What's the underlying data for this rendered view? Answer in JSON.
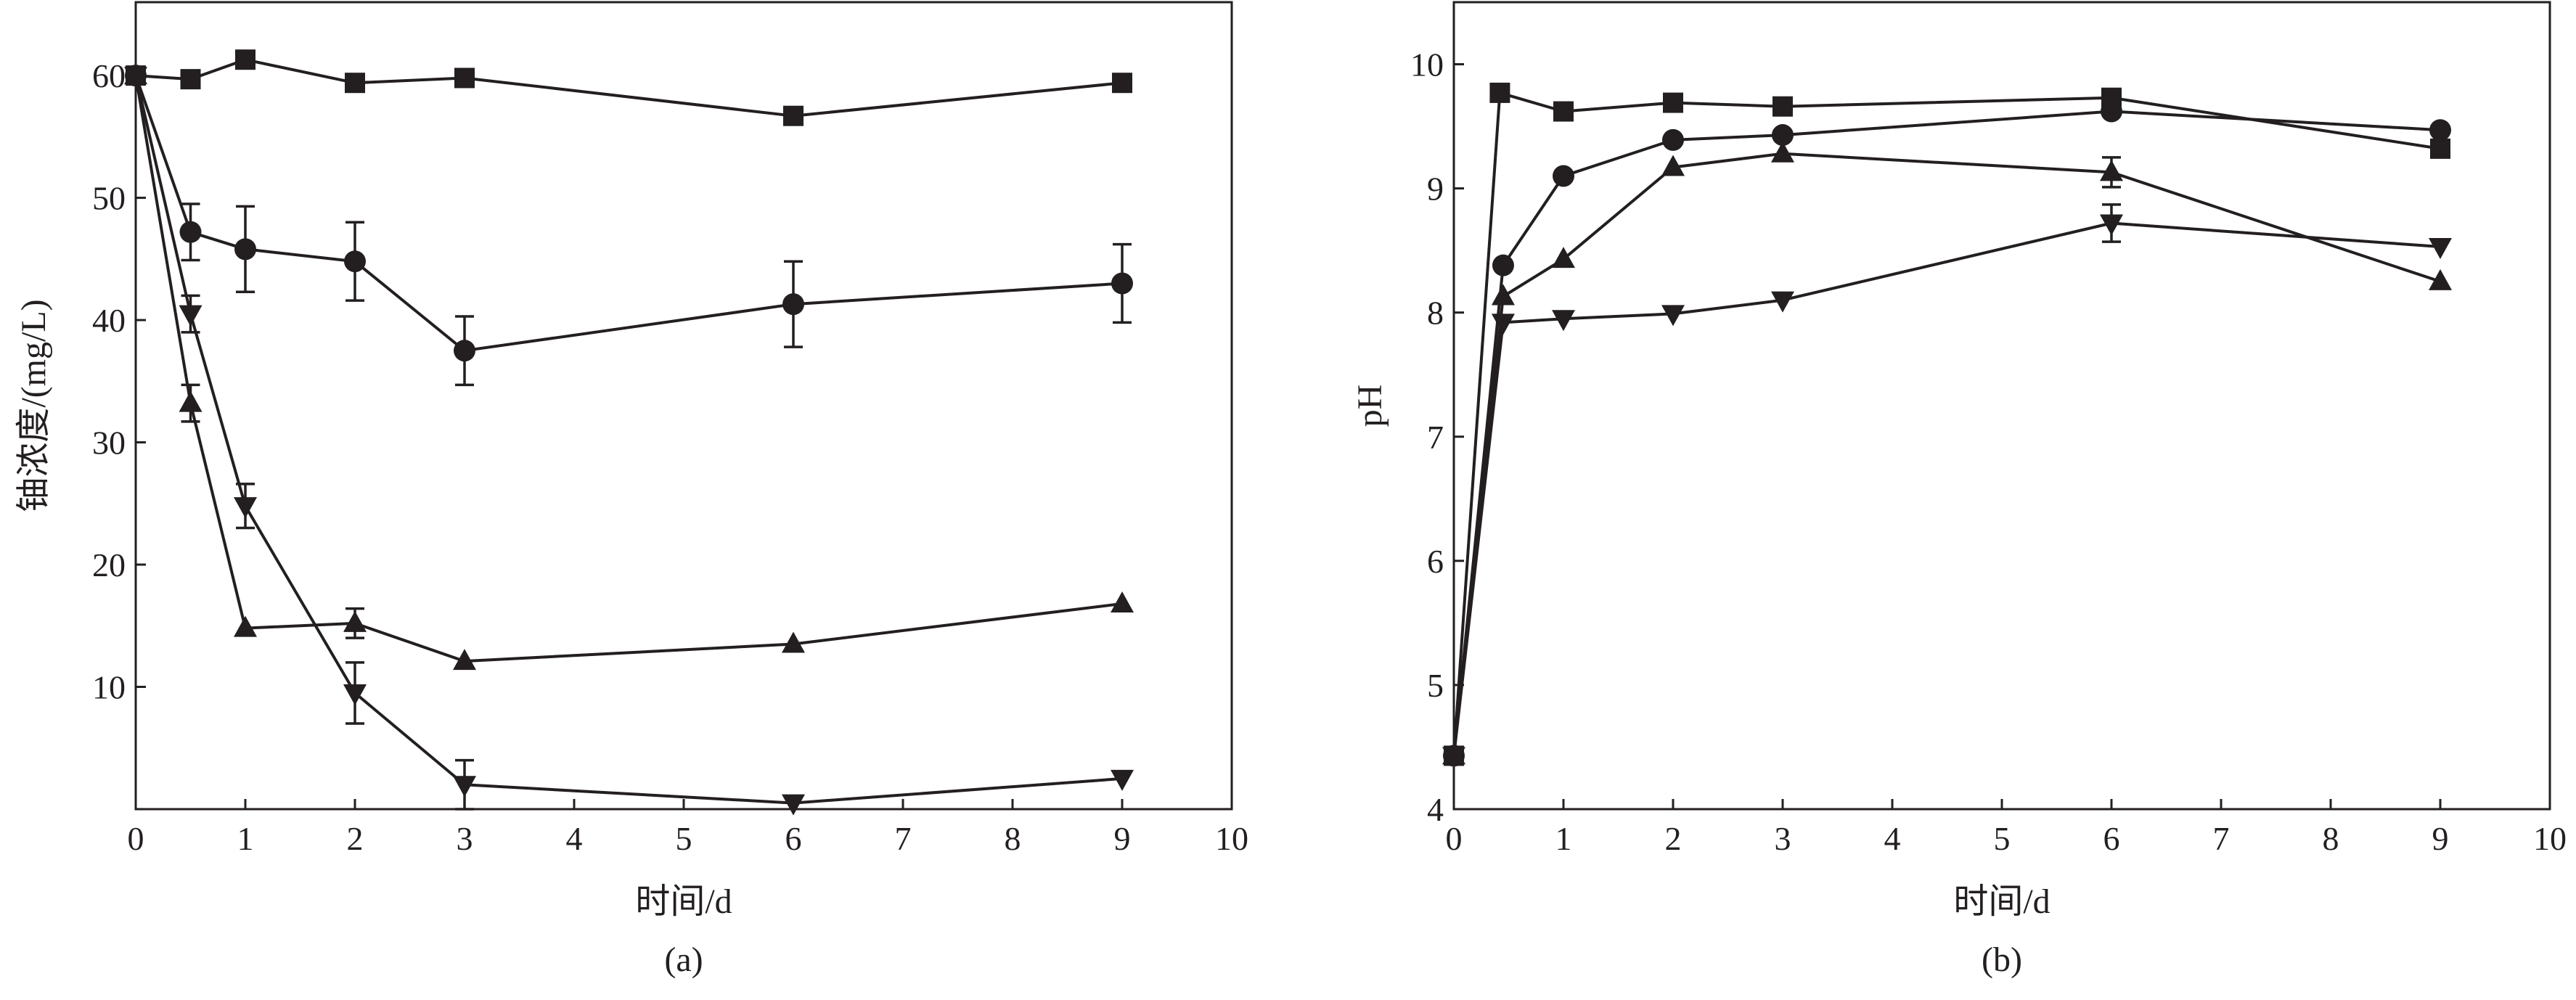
{
  "chart_data": [
    {
      "type": "line",
      "panel_label": "(a)",
      "xlabel": "时间/d",
      "ylabel": "铀浓度/(mg/L)",
      "xlim": [
        0,
        10
      ],
      "ylim": [
        0,
        66
      ],
      "x_ticks": [
        0,
        1,
        2,
        3,
        4,
        5,
        6,
        7,
        8,
        9,
        10
      ],
      "y_ticks": [
        10,
        20,
        30,
        40,
        50,
        60
      ],
      "grid": false,
      "legend": "none",
      "series": [
        {
          "marker": "square",
          "points": [
            {
              "x": 0,
              "y": 60
            },
            {
              "x": 0.5,
              "y": 59.7
            },
            {
              "x": 1,
              "y": 61.3
            },
            {
              "x": 2,
              "y": 59.4
            },
            {
              "x": 3,
              "y": 59.8
            },
            {
              "x": 6,
              "y": 56.7
            },
            {
              "x": 9,
              "y": 59.4
            }
          ]
        },
        {
          "marker": "circle",
          "points": [
            {
              "x": 0,
              "y": 60
            },
            {
              "x": 0.5,
              "y": 47.2,
              "err": 2.3
            },
            {
              "x": 1,
              "y": 45.8,
              "err": 3.5
            },
            {
              "x": 2,
              "y": 44.8,
              "err": 3.2
            },
            {
              "x": 3,
              "y": 37.5,
              "err": 2.8
            },
            {
              "x": 6,
              "y": 41.3,
              "err": 3.5
            },
            {
              "x": 9,
              "y": 43.0,
              "err": 3.2
            }
          ]
        },
        {
          "marker": "triangle-up",
          "points": [
            {
              "x": 0,
              "y": 60
            },
            {
              "x": 0.5,
              "y": 33.2,
              "err": 1.5
            },
            {
              "x": 1,
              "y": 14.8
            },
            {
              "x": 2,
              "y": 15.2,
              "err": 1.2
            },
            {
              "x": 3,
              "y": 12.1
            },
            {
              "x": 6,
              "y": 13.5
            },
            {
              "x": 9,
              "y": 16.8
            }
          ]
        },
        {
          "marker": "triangle-down",
          "points": [
            {
              "x": 0,
              "y": 60
            },
            {
              "x": 0.5,
              "y": 40.5,
              "err": 1.5
            },
            {
              "x": 1,
              "y": 24.8,
              "err": 1.8
            },
            {
              "x": 2,
              "y": 9.5,
              "err": 2.5
            },
            {
              "x": 3,
              "y": 2.0,
              "err": 2.0
            },
            {
              "x": 6,
              "y": 0.5
            },
            {
              "x": 9,
              "y": 2.5
            }
          ]
        }
      ]
    },
    {
      "type": "line",
      "panel_label": "(b)",
      "xlabel": "时间/d",
      "ylabel": "pH",
      "xlim": [
        0,
        10
      ],
      "ylim": [
        4,
        10.5
      ],
      "x_ticks": [
        0,
        1,
        2,
        3,
        4,
        5,
        6,
        7,
        8,
        9,
        10
      ],
      "y_ticks": [
        4,
        5,
        6,
        7,
        8,
        9,
        10
      ],
      "grid": false,
      "legend": "none",
      "series": [
        {
          "marker": "square",
          "points": [
            {
              "x": 0,
              "y": 4.43
            },
            {
              "x": 0.42,
              "y": 9.77
            },
            {
              "x": 1,
              "y": 9.62
            },
            {
              "x": 2,
              "y": 9.69
            },
            {
              "x": 3,
              "y": 9.66
            },
            {
              "x": 6,
              "y": 9.73
            },
            {
              "x": 9,
              "y": 9.32
            }
          ]
        },
        {
          "marker": "circle",
          "points": [
            {
              "x": 0,
              "y": 4.43
            },
            {
              "x": 0.45,
              "y": 8.38
            },
            {
              "x": 1,
              "y": 9.1
            },
            {
              "x": 2,
              "y": 9.39
            },
            {
              "x": 3,
              "y": 9.43
            },
            {
              "x": 6,
              "y": 9.62
            },
            {
              "x": 9,
              "y": 9.47
            }
          ]
        },
        {
          "marker": "triangle-up",
          "points": [
            {
              "x": 0,
              "y": 4.43
            },
            {
              "x": 0.45,
              "y": 8.13
            },
            {
              "x": 1,
              "y": 8.43
            },
            {
              "x": 2,
              "y": 9.17
            },
            {
              "x": 3,
              "y": 9.28
            },
            {
              "x": 6,
              "y": 9.13,
              "err": 0.12
            },
            {
              "x": 9,
              "y": 8.25
            }
          ]
        },
        {
          "marker": "triangle-down",
          "points": [
            {
              "x": 0,
              "y": 4.43
            },
            {
              "x": 0.45,
              "y": 7.92
            },
            {
              "x": 1,
              "y": 7.95
            },
            {
              "x": 2,
              "y": 7.99
            },
            {
              "x": 3,
              "y": 8.1
            },
            {
              "x": 6,
              "y": 8.72,
              "err": 0.15
            },
            {
              "x": 9,
              "y": 8.53
            }
          ]
        }
      ]
    }
  ]
}
